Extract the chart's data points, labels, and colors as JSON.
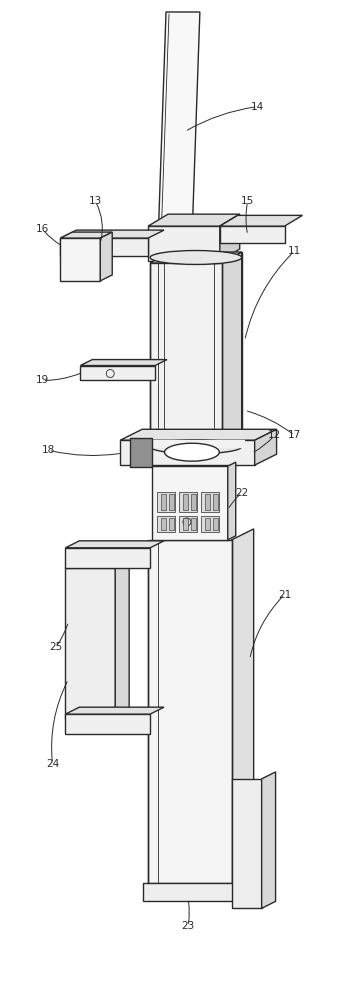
{
  "bg_color": "#ffffff",
  "lc": "#2a2a2a",
  "lw": 1.0,
  "tlw": 0.6,
  "fig_w": 3.42,
  "fig_h": 10.0
}
